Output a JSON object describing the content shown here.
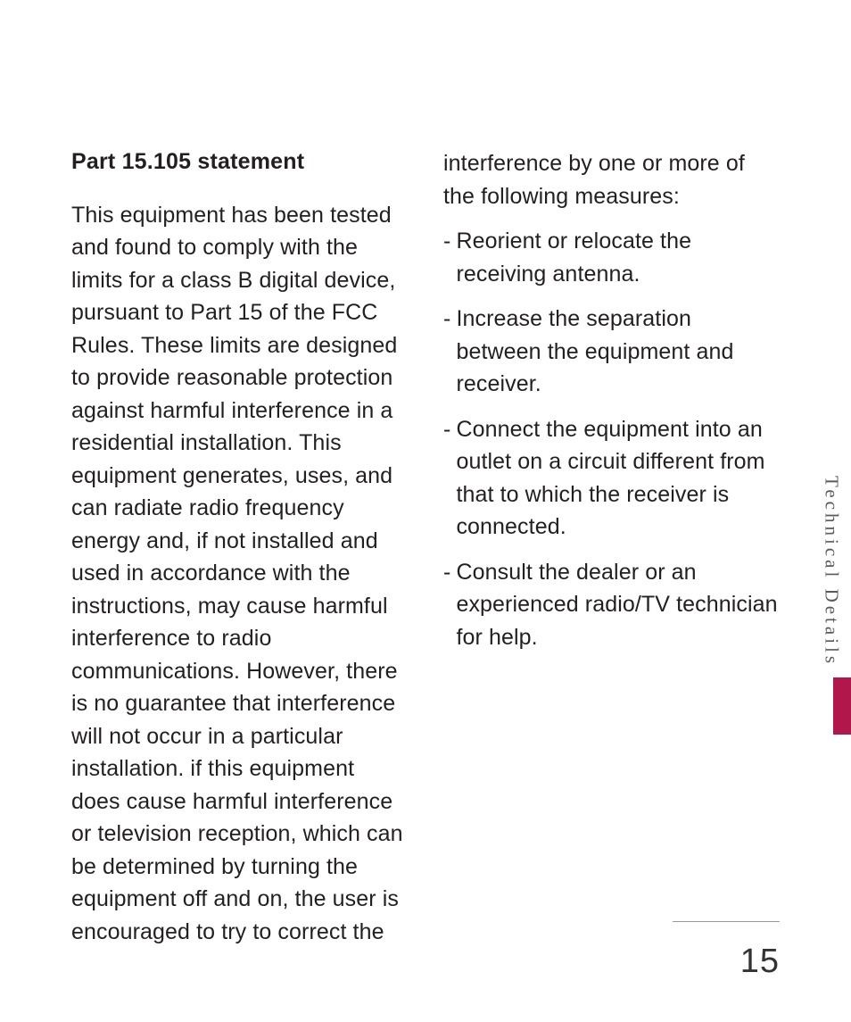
{
  "page": {
    "number": "15",
    "section_tab": "Technical Details",
    "accent_color": "#b2174c",
    "background_color": "#ffffff",
    "text_color": "#231f20",
    "body_fontsize": 25,
    "heading_fontsize": 25
  },
  "content": {
    "heading": "Part 15.105 statement",
    "left_paragraph": "This equipment has been tested and found to comply with the limits for a class B digital device, pursuant to Part 15 of the FCC Rules. These limits are designed to provide reasonable protection against harmful interference in a residential installation. This equipment generates, uses, and can radiate radio frequency energy and, if not installed and used in accordance with the instructions, may cause harmful interference to radio communications. However, there is no guarantee that interference will not occur in a particular installation. if this equipment does cause harmful interference or television reception, which can be determined by turning the equipment off and on, the user is encouraged to try to correct the",
    "right_lead": "interference by one or more of the following measures:",
    "bullets": [
      "Reorient or relocate the receiving antenna.",
      "Increase the separation between the equipment and receiver.",
      "Connect the equipment into an outlet on a circuit different from that to which the receiver is connected.",
      "Consult the dealer or an experienced radio/TV technician for help."
    ]
  }
}
